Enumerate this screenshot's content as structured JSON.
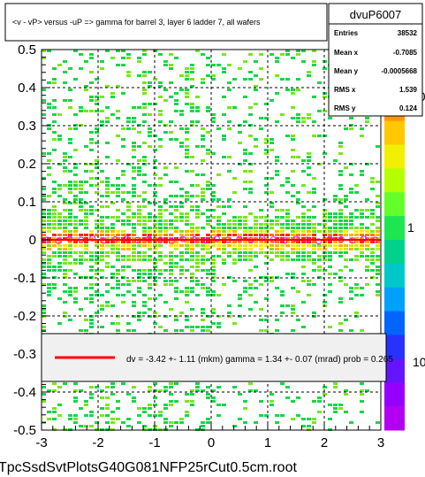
{
  "title": "<v - vP>     versus  -uP =>  gamma for barrel 3, layer 6 ladder 7, all wafers",
  "stats": {
    "name": "dvuP6007",
    "rows": [
      {
        "label": "Entries",
        "value": "38532"
      },
      {
        "label": "Mean x",
        "value": "-0.7085"
      },
      {
        "label": "Mean y",
        "value": "-0.0005668"
      },
      {
        "label": "RMS x",
        "value": "1.539"
      },
      {
        "label": "RMS y",
        "value": "0.124"
      }
    ]
  },
  "fit_text": "dv =   -3.42 +-  1.11 (mkm) gamma =    1.34 +-  0.07 (mrad) prob = 0.265",
  "footer": "TpcSsdSvtPlotsG40G081NFP25rCut0.5cm.root",
  "colors": {
    "fit_line": "#ff0000",
    "profile_marker": "#ff00ff",
    "frame": "#000000"
  },
  "chart_data": {
    "type": "heatmap",
    "xlim": [
      -3,
      3
    ],
    "ylim": [
      -0.5,
      0.5
    ],
    "x_ticks": [
      "-3",
      "-2",
      "-1",
      "0",
      "1",
      "2",
      "3"
    ],
    "y_ticks": [
      "-0.5",
      "-0.4",
      "-0.3",
      "-0.2",
      "-0.1",
      "0",
      "0.1",
      "0.2",
      "0.3",
      "0.4",
      "0.5"
    ],
    "grid": true,
    "z_scale": "log",
    "z_labels": [
      "10",
      "1",
      "10"
    ],
    "fit_line": {
      "x": [
        -3,
        3
      ],
      "y": [
        0.0,
        0.0
      ]
    },
    "profile": {
      "x": [
        -2.9,
        -2.7,
        -2.5,
        -2.3,
        -2.1,
        -1.9,
        -1.7,
        -1.5,
        -1.3,
        -1.1,
        -0.9,
        -0.7,
        -0.5,
        -0.3,
        -0.1,
        0.1,
        0.3,
        0.5,
        0.7,
        0.9,
        1.1,
        1.3,
        1.5,
        1.7,
        1.9,
        2.1,
        2.3,
        2.5,
        2.7,
        2.9
      ],
      "y": [
        0.0,
        -0.003,
        0.002,
        0.0,
        0.004,
        -0.002,
        0.001,
        0.003,
        -0.001,
        0.002,
        0.0,
        -0.003,
        0.002,
        0.001,
        -0.002,
        0.003,
        0.0,
        0.002,
        -0.001,
        0.004,
        0.001,
        -0.002,
        0.003,
        0.0,
        -0.004,
        0.002,
        0.001,
        -0.002,
        0.003,
        0.0
      ]
    }
  }
}
